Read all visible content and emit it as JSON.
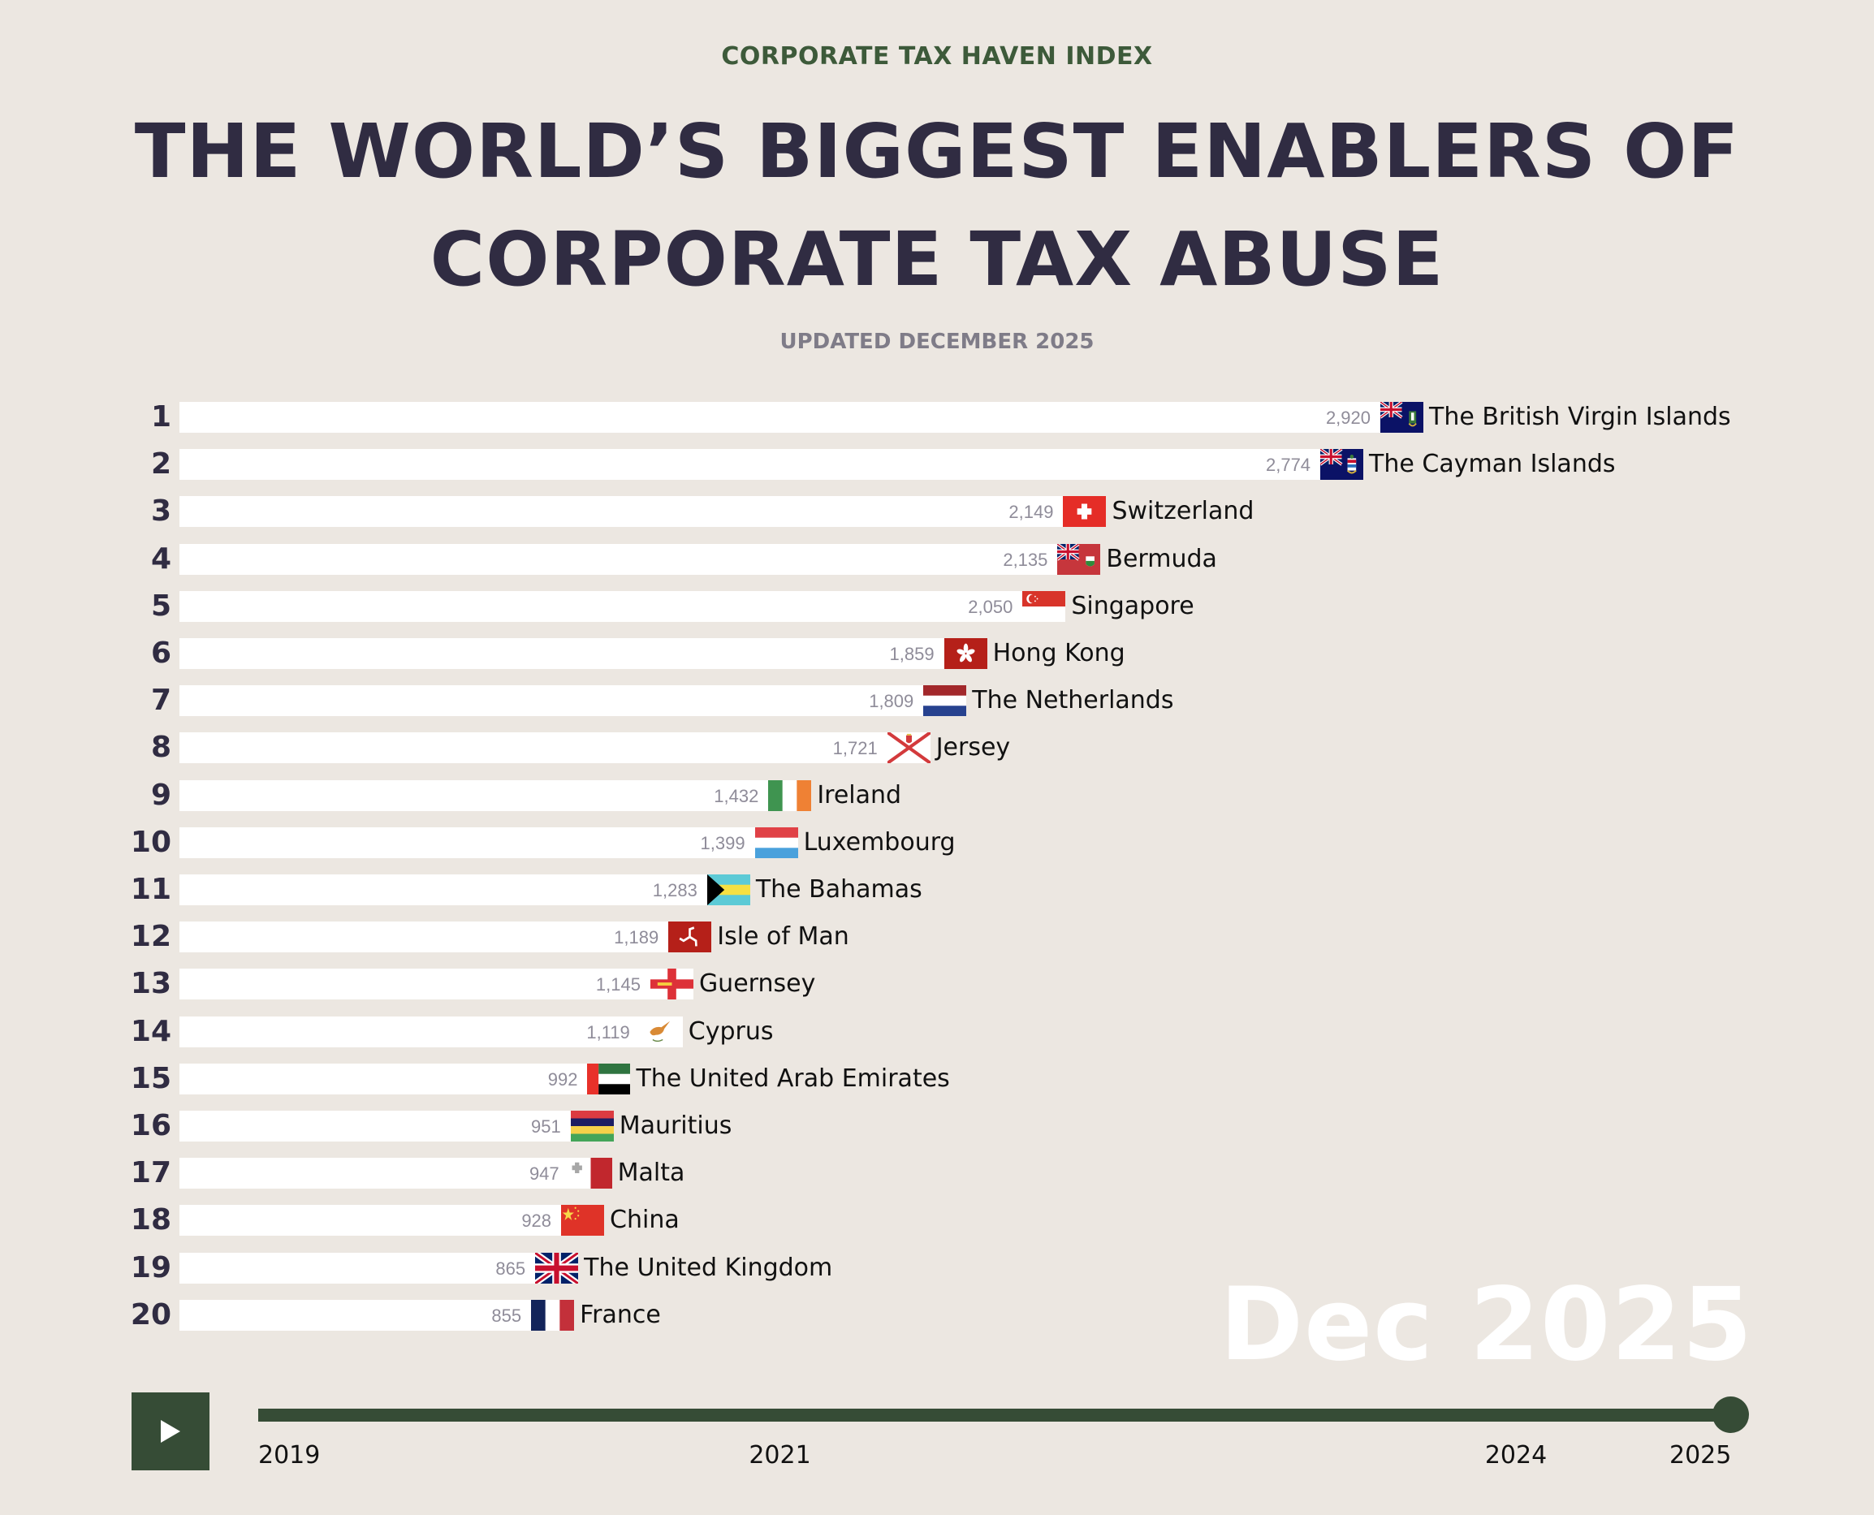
{
  "header": {
    "kicker": "CORPORATE TAX HAVEN INDEX",
    "title_line1": "THE WORLD’S BIGGEST ENABLERS OF",
    "title_line2": "CORPORATE TAX ABUSE",
    "updated": "UPDATED DECEMBER 2025"
  },
  "watermark": "Dec 2025",
  "controls": {
    "play_icon": "play-icon",
    "timeline_ticks": [
      "2019",
      "2021",
      "2024",
      "2025"
    ],
    "timeline_start": 2019,
    "timeline_end": 2025,
    "timeline_position": 2025
  },
  "colors": {
    "background": "#ece7e1",
    "title": "#302c42",
    "kicker": "#3d5a3a",
    "accent": "#364c36",
    "bar": "#ffffff",
    "value_text": "#8f8c99"
  },
  "chart_data": {
    "type": "bar",
    "orientation": "horizontal",
    "title": "THE WORLD’S BIGGEST ENABLERS OF CORPORATE TAX ABUSE",
    "subtitle": "UPDATED DECEMBER 2025",
    "xlabel": "",
    "ylabel": "",
    "xlim": [
      0,
      2920
    ],
    "grid": false,
    "legend": "none",
    "period": "Dec 2025",
    "ranks": [
      1,
      2,
      3,
      4,
      5,
      6,
      7,
      8,
      9,
      10,
      11,
      12,
      13,
      14,
      15,
      16,
      17,
      18,
      19,
      20
    ],
    "categories": [
      "The British Virgin Islands",
      "The Cayman Islands",
      "Switzerland",
      "Bermuda",
      "Singapore",
      "Hong Kong",
      "The Netherlands",
      "Jersey",
      "Ireland",
      "Luxembourg",
      "The Bahamas",
      "Isle of Man",
      "Guernsey",
      "Cyprus",
      "The United Arab Emirates",
      "Mauritius",
      "Malta",
      "China",
      "The United Kingdom",
      "France"
    ],
    "values": [
      2920,
      2774,
      2149,
      2135,
      2050,
      1859,
      1809,
      1721,
      1432,
      1399,
      1283,
      1189,
      1145,
      1119,
      992,
      951,
      947,
      928,
      865,
      855
    ],
    "value_labels": [
      "2,920",
      "2,774",
      "2,149",
      "2,135",
      "2,050",
      "1,859",
      "1,809",
      "1,721",
      "1,432",
      "1,399",
      "1,283",
      "1,189",
      "1,145",
      "1,119",
      "992",
      "951",
      "947",
      "928",
      "865",
      "855"
    ],
    "flags": [
      "vg",
      "ky",
      "ch",
      "bm",
      "sg",
      "hk",
      "nl",
      "je",
      "ie",
      "lu",
      "bs",
      "im",
      "gg",
      "cy",
      "ae",
      "mu",
      "mt",
      "cn",
      "gb",
      "fr"
    ]
  }
}
